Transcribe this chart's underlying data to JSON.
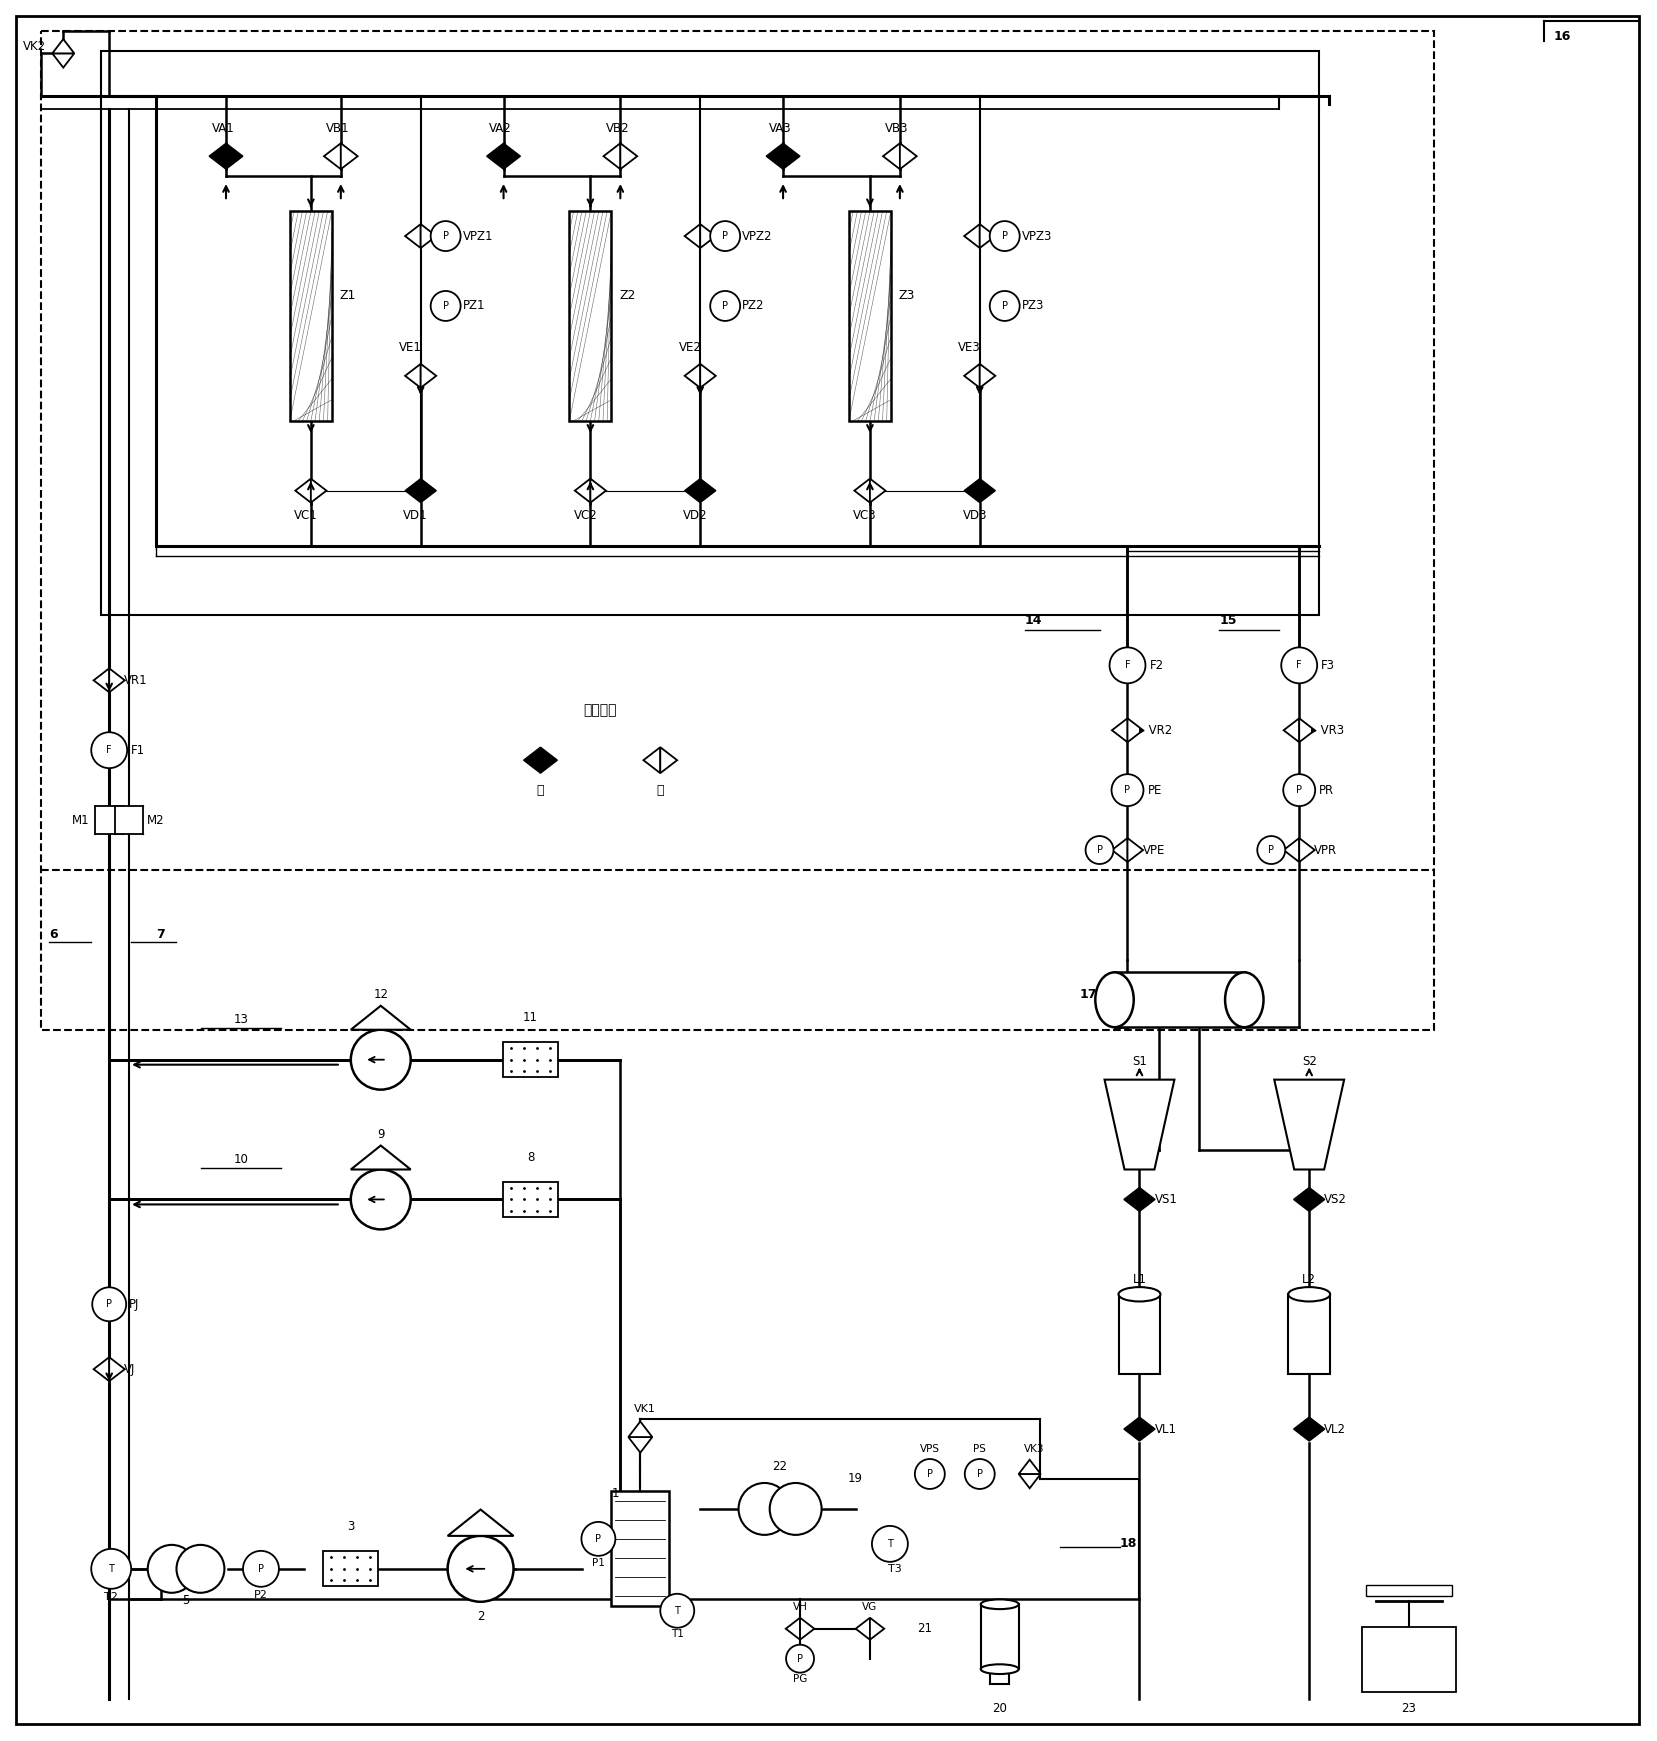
{
  "fig_width": 16.57,
  "fig_height": 17.41,
  "bg_color": "#ffffff",
  "line_color": "#000000",
  "valve_legend_title": "阀门状态",
  "valve_legend_close": "关",
  "valve_legend_open": "开"
}
